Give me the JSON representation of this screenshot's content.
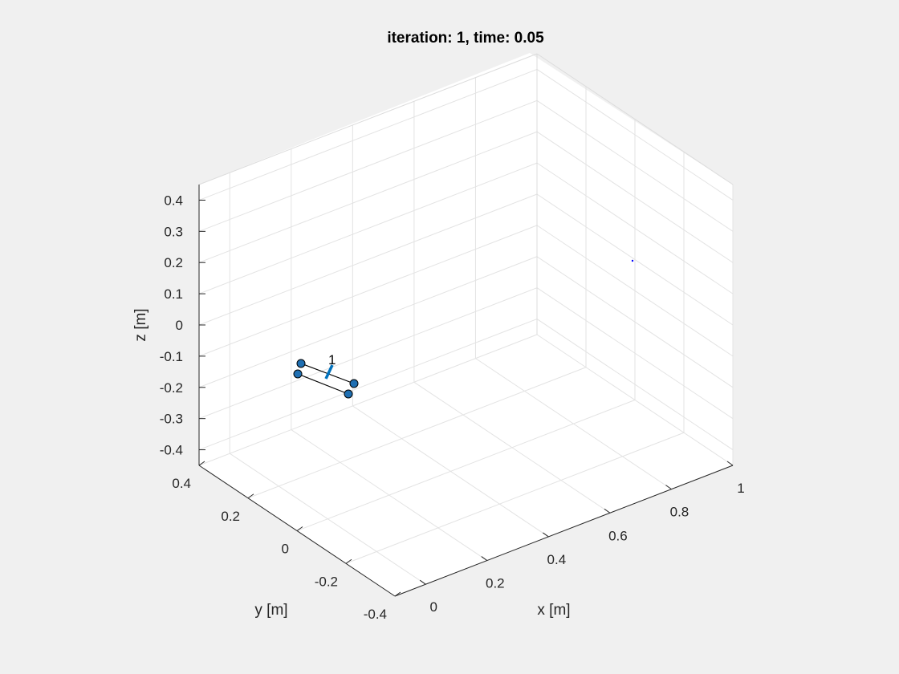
{
  "chart_data": {
    "type": "scatter3d",
    "title": "iteration: 1, time: 0.05",
    "xlabel": "x [m]",
    "ylabel": "y [m]",
    "zlabel": "z [m]",
    "xlim": [
      -0.1,
      1.0
    ],
    "ylim": [
      -0.4,
      0.4
    ],
    "zlim": [
      -0.45,
      0.45
    ],
    "grid": true,
    "x_ticks": [
      0,
      0.2,
      0.4,
      0.6,
      0.8,
      1
    ],
    "x_tick_labels": [
      "0",
      "0.2",
      "0.4",
      "0.6",
      "0.8",
      "1"
    ],
    "y_ticks": [
      -0.4,
      -0.2,
      0,
      0.2,
      0.4
    ],
    "y_tick_labels": [
      "-0.4",
      "-0.2",
      "0",
      "0.2",
      "0.4"
    ],
    "z_ticks": [
      -0.4,
      -0.3,
      -0.2,
      -0.1,
      0,
      0.1,
      0.2,
      0.3,
      0.4
    ],
    "z_tick_labels": [
      "-0.4",
      "-0.3",
      "-0.2",
      "-0.1",
      "0",
      "0.1",
      "0.2",
      "0.3",
      "0.4"
    ],
    "quadrotor": {
      "label": "1",
      "center": [
        0.0,
        0.0,
        0.0
      ],
      "rotors": [
        [
          0.03,
          0.06,
          0.0
        ],
        [
          -0.03,
          0.06,
          0.0
        ],
        [
          0.05,
          -0.04,
          0.0
        ],
        [
          -0.03,
          -0.06,
          0.0
        ]
      ],
      "arm_pairs": [
        [
          0,
          2
        ],
        [
          1,
          3
        ]
      ],
      "thrust_vector": [
        0.0,
        0.0,
        0.05
      ],
      "marker_color": "#1f6fb2",
      "thrust_color": "#0072bd",
      "arm_color": "#000000"
    },
    "goal_point": {
      "position": [
        0.8,
        0.2,
        0.25
      ],
      "color": "#0000ff"
    }
  }
}
